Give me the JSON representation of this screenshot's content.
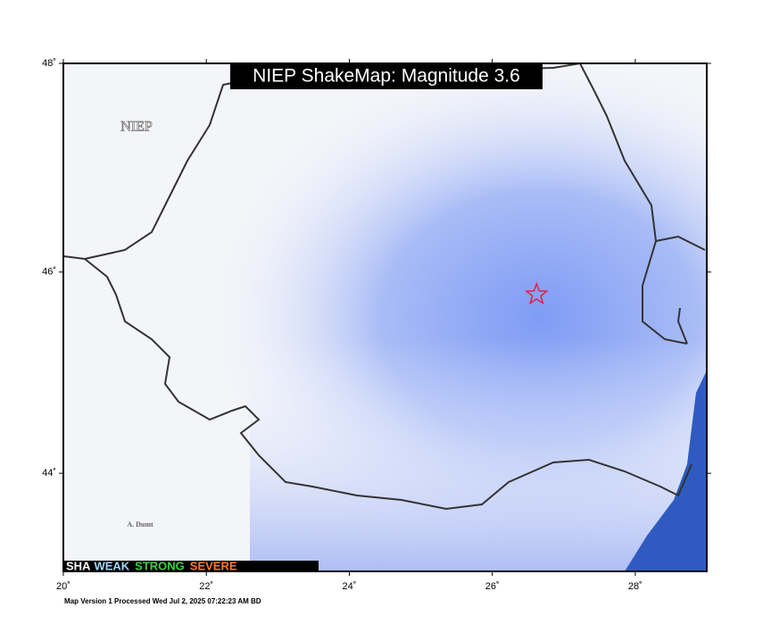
{
  "title": "NIEP ShakeMap: Magnitude 3.6",
  "watermark": "NIEP",
  "place_label": "A. Dumt",
  "footer": "Map Version 1 Processed Wed Jul  2, 2025 07:22:23 AM BD",
  "map": {
    "projection": "mercator",
    "xlim": [
      20,
      29
    ],
    "ylim": [
      43,
      48
    ],
    "xticks": [
      {
        "value": 20,
        "label": "20˚"
      },
      {
        "value": 22,
        "label": "22˚"
      },
      {
        "value": 24,
        "label": "24˚"
      },
      {
        "value": 26,
        "label": "26˚"
      },
      {
        "value": 28,
        "label": "28˚"
      }
    ],
    "yticks": [
      {
        "value": 44,
        "label": "44˚"
      },
      {
        "value": 46,
        "label": "46˚"
      },
      {
        "value": 48,
        "label": "48˚"
      }
    ],
    "epicenter": {
      "lon": 26.62,
      "lat": 45.78,
      "color": "#e0204a"
    }
  },
  "legend": [
    {
      "text": "SHA",
      "color": "#ffffff"
    },
    {
      "text": "WEAK",
      "color": "#a0d8ff"
    },
    {
      "text": "STRONG",
      "color": "#40d040"
    },
    {
      "text": "SEVERE",
      "color": "#ff7a30"
    }
  ]
}
